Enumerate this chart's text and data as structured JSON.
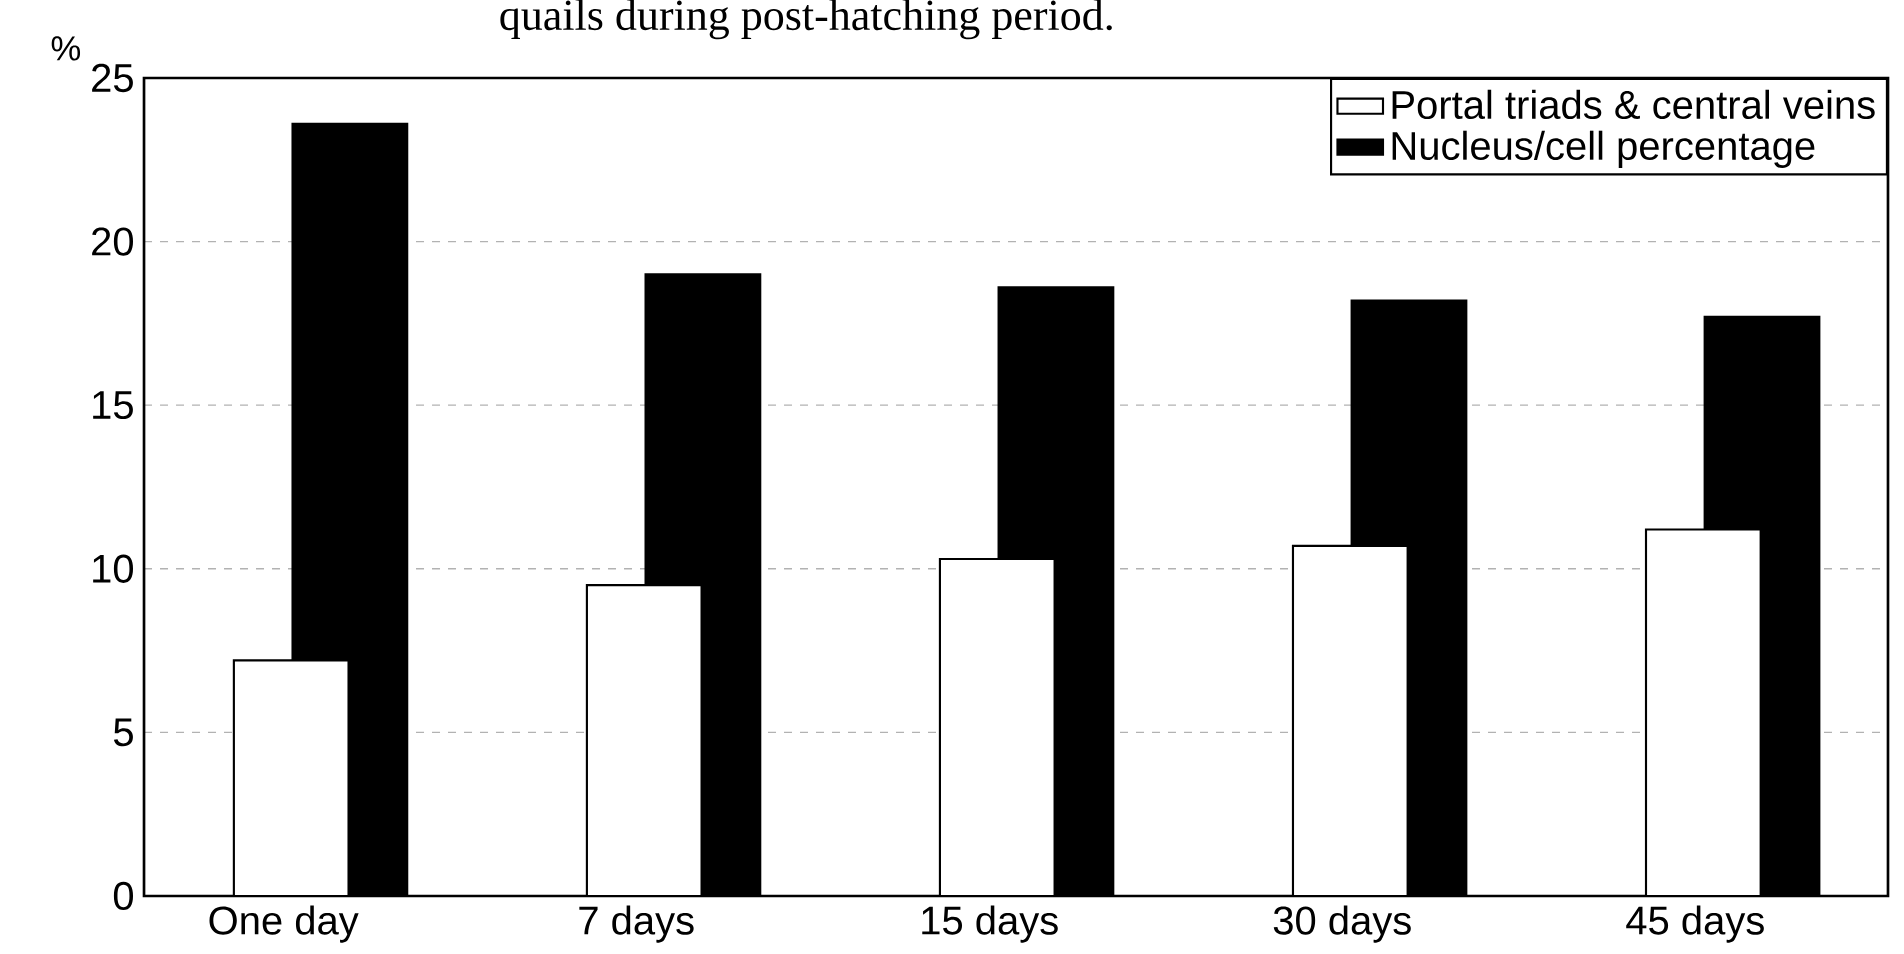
{
  "chart_data": {
    "type": "bar",
    "title": "quails during post-hatching period.",
    "ylabel": "%",
    "categories": [
      "One day",
      "7 days",
      "15 days",
      "30 days",
      "45 days"
    ],
    "series": [
      {
        "name": "Portal triads & central veins",
        "color": "#ffffff",
        "values": [
          7.2,
          9.5,
          10.3,
          10.7,
          11.2
        ]
      },
      {
        "name": "Nucleus/cell percentage",
        "color": "#000000",
        "values": [
          23.6,
          19.0,
          18.6,
          18.2,
          17.7
        ]
      }
    ],
    "ylim": [
      0,
      25
    ],
    "yticks": [
      0,
      5,
      10,
      15,
      20,
      25
    ],
    "grid": "y",
    "legend": "top right"
  }
}
